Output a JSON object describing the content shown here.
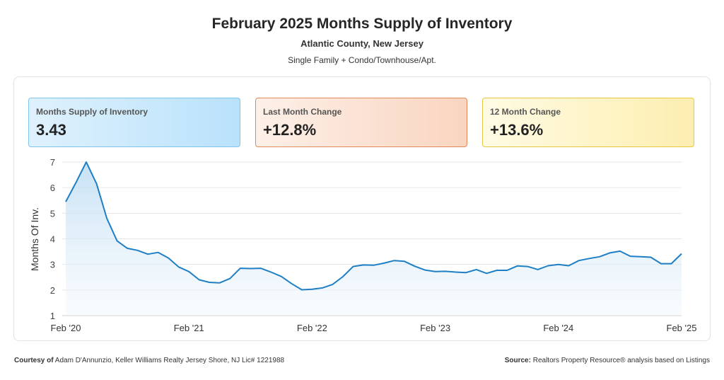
{
  "header": {
    "title": "February 2025 Months Supply of Inventory",
    "subtitle": "Atlantic County, New Jersey",
    "note": "Single Family + Condo/Townhouse/Apt."
  },
  "cards": [
    {
      "label": "Months Supply of Inventory",
      "value": "3.43"
    },
    {
      "label": "Last Month Change",
      "value": "+12.8%"
    },
    {
      "label": "12 Month Change",
      "value": "+13.6%"
    }
  ],
  "chart_data": {
    "type": "area",
    "ylabel": "Months Of Inv.",
    "xlabel": "",
    "ylim": [
      1,
      7
    ],
    "yticks": [
      "1",
      "2",
      "3",
      "4",
      "5",
      "6",
      "7"
    ],
    "xtick_labels": [
      "Feb '20",
      "Feb '21",
      "Feb '22",
      "Feb '23",
      "Feb '24",
      "Feb '25"
    ],
    "grid": true,
    "line_color": "#1f7fc4",
    "fill_color": "#cfe6f7",
    "x": [
      "Feb '20",
      "Mar '20",
      "Apr '20",
      "May '20",
      "Jun '20",
      "Jul '20",
      "Aug '20",
      "Sep '20",
      "Oct '20",
      "Nov '20",
      "Dec '20",
      "Jan '21",
      "Feb '21",
      "Mar '21",
      "Apr '21",
      "May '21",
      "Jun '21",
      "Jul '21",
      "Aug '21",
      "Sep '21",
      "Oct '21",
      "Nov '21",
      "Dec '21",
      "Jan '22",
      "Feb '22",
      "Mar '22",
      "Apr '22",
      "May '22",
      "Jun '22",
      "Jul '22",
      "Aug '22",
      "Sep '22",
      "Oct '22",
      "Nov '22",
      "Dec '22",
      "Jan '23",
      "Feb '23",
      "Mar '23",
      "Apr '23",
      "May '23",
      "Jun '23",
      "Jul '23",
      "Aug '23",
      "Sep '23",
      "Oct '23",
      "Nov '23",
      "Dec '23",
      "Jan '24",
      "Feb '24",
      "Mar '24",
      "Apr '24",
      "May '24",
      "Jun '24",
      "Jul '24",
      "Aug '24",
      "Sep '24",
      "Oct '24",
      "Nov '24",
      "Dec '24",
      "Jan '25",
      "Feb '25"
    ],
    "values": [
      5.45,
      6.2,
      7.0,
      6.15,
      4.8,
      3.92,
      3.63,
      3.55,
      3.4,
      3.47,
      3.25,
      2.9,
      2.72,
      2.4,
      2.3,
      2.28,
      2.45,
      2.85,
      2.84,
      2.85,
      2.7,
      2.53,
      2.25,
      2.01,
      2.03,
      2.08,
      2.22,
      2.52,
      2.92,
      2.98,
      2.97,
      3.05,
      3.15,
      3.12,
      2.93,
      2.78,
      2.72,
      2.73,
      2.7,
      2.68,
      2.8,
      2.65,
      2.77,
      2.77,
      2.94,
      2.92,
      2.8,
      2.95,
      3.0,
      2.95,
      3.15,
      3.23,
      3.3,
      3.45,
      3.52,
      3.32,
      3.3,
      3.28,
      3.03,
      3.03,
      3.42
    ]
  },
  "footer": {
    "courtesy_label": "Courtesy of",
    "courtesy_text": "Adam D'Annunzio, Keller Williams Realty Jersey Shore, NJ Lic# 1221988",
    "source_label": "Source:",
    "source_text": "Realtors Property Resource® analysis based on Listings"
  }
}
